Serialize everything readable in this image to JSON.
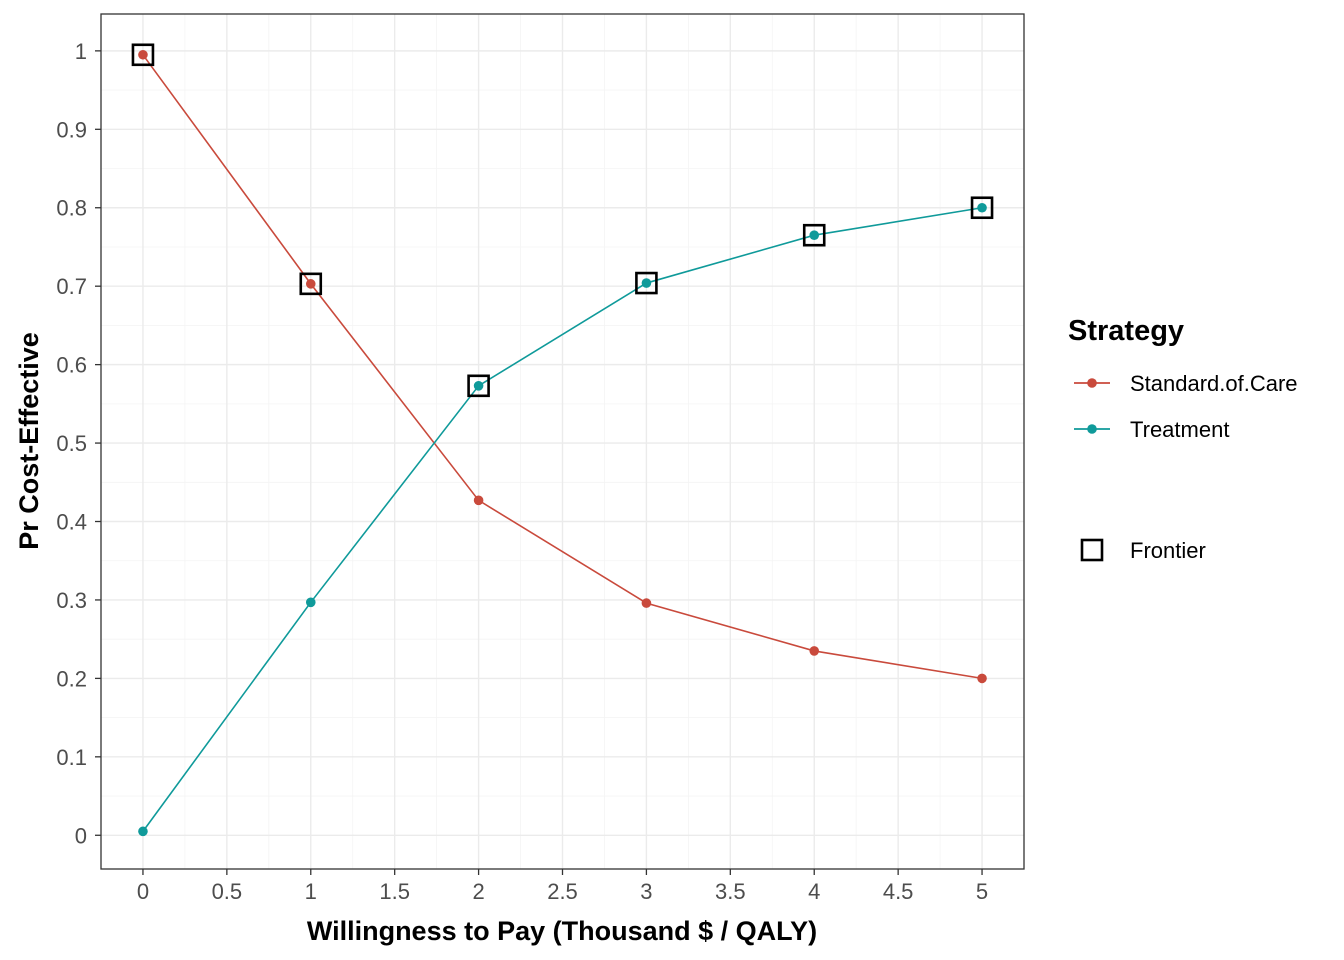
{
  "chart_data": {
    "type": "line",
    "xlabel": "Willingness to Pay (Thousand $ / QALY)",
    "ylabel": "Pr Cost-Effective",
    "xlim": [
      -0.25,
      5.25
    ],
    "ylim": [
      -0.043,
      1.047
    ],
    "x_ticks": [
      0,
      0.5,
      1,
      1.5,
      2,
      2.5,
      3,
      3.5,
      4,
      4.5,
      5
    ],
    "x_tick_labels": [
      "0",
      "0.5",
      "1",
      "1.5",
      "2",
      "2.5",
      "3",
      "3.5",
      "4",
      "4.5",
      "5"
    ],
    "y_ticks": [
      0,
      0.1,
      0.2,
      0.3,
      0.4,
      0.5,
      0.6,
      0.7,
      0.8,
      0.9,
      1
    ],
    "y_tick_labels": [
      "0",
      "0.1",
      "0.2",
      "0.3",
      "0.4",
      "0.5",
      "0.6",
      "0.7",
      "0.8",
      "0.9",
      "1"
    ],
    "grid": true,
    "x": [
      0,
      1,
      2,
      3,
      4,
      5
    ],
    "series": [
      {
        "name": "Standard.of.Care",
        "color": "#c94a3c",
        "values": [
          0.995,
          0.703,
          0.427,
          0.296,
          0.235,
          0.2
        ]
      },
      {
        "name": "Treatment",
        "color": "#0f9a9a",
        "values": [
          0.005,
          0.297,
          0.573,
          0.704,
          0.765,
          0.8
        ]
      }
    ],
    "frontier": {
      "label": "Frontier",
      "points": [
        {
          "x": 0,
          "y": 0.995
        },
        {
          "x": 1,
          "y": 0.703
        },
        {
          "x": 2,
          "y": 0.573
        },
        {
          "x": 3,
          "y": 0.704
        },
        {
          "x": 4,
          "y": 0.765
        },
        {
          "x": 5,
          "y": 0.8
        }
      ]
    },
    "legend": {
      "title": "Strategy",
      "placement": "right"
    }
  }
}
